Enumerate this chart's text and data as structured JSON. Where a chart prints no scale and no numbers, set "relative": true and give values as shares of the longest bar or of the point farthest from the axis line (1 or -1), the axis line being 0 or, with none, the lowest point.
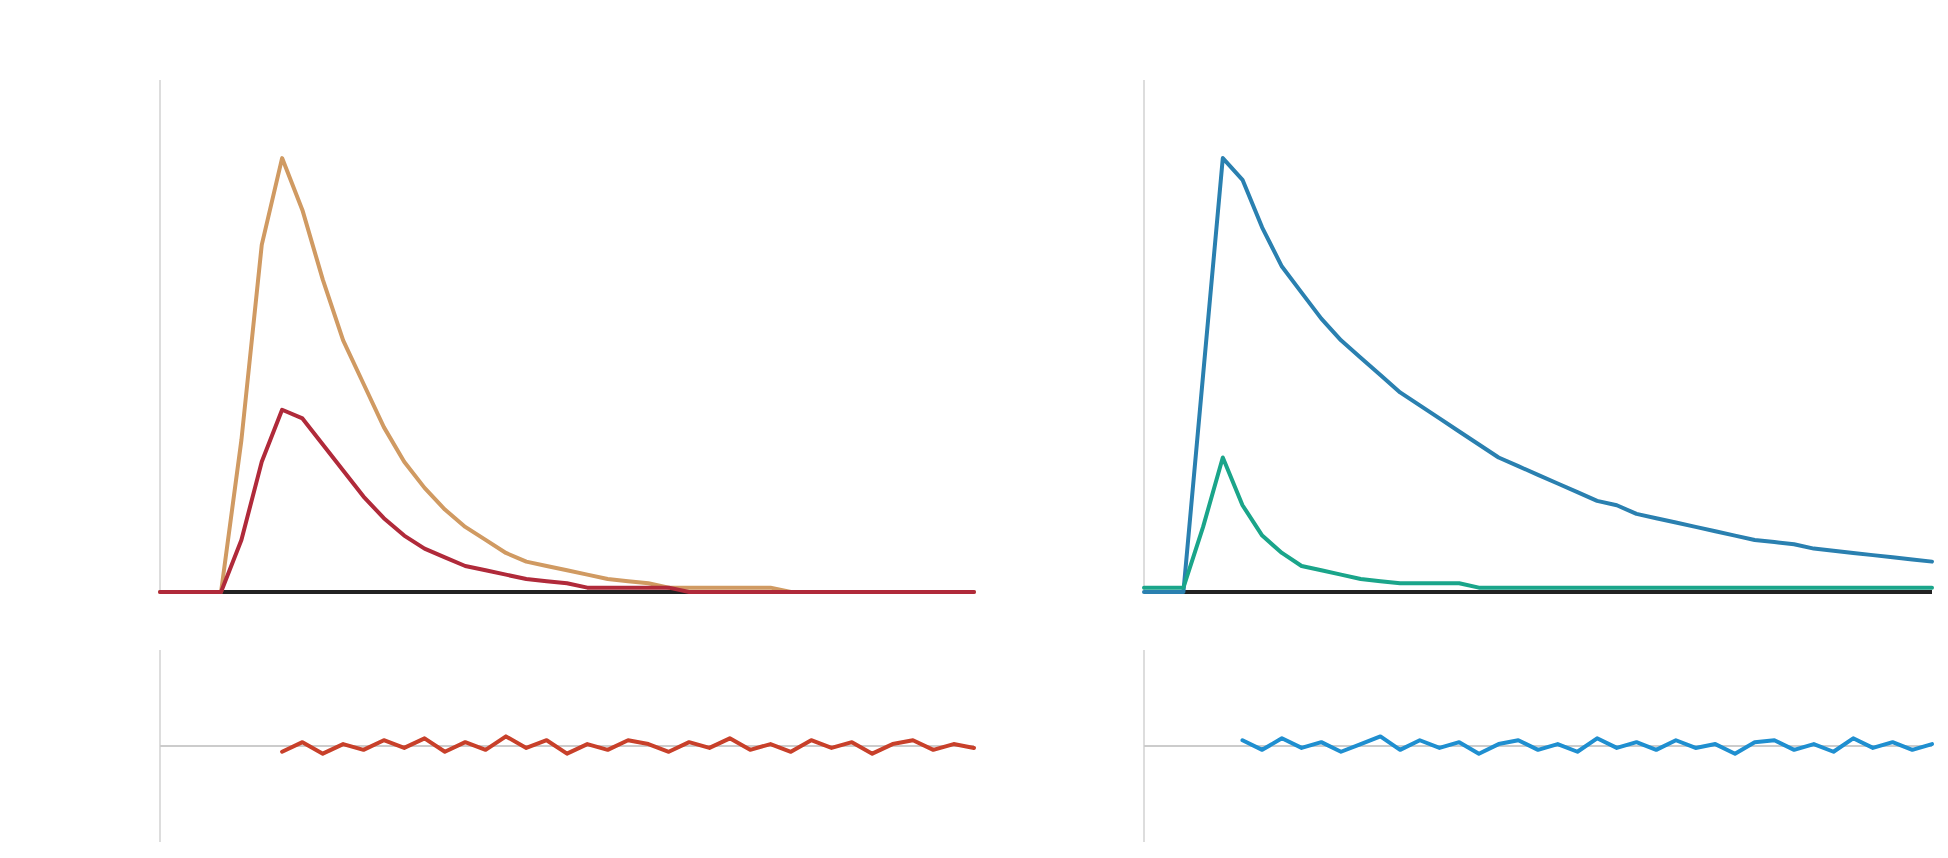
{
  "chart_data": [
    {
      "type": "line",
      "relative": true,
      "categories": [
        null,
        null,
        null,
        null,
        null,
        null,
        null,
        null,
        null,
        null,
        null,
        null,
        null,
        null,
        null,
        null,
        null,
        null,
        null,
        null,
        null,
        null,
        null,
        null,
        null,
        null,
        null,
        null,
        null,
        null,
        null,
        null,
        null,
        null,
        null,
        null,
        null,
        null,
        null,
        null,
        null
      ],
      "series": [
        {
          "color": "#d09a62",
          "values": [
            0,
            0,
            0,
            0,
            0.35,
            0.8,
            1,
            0.88,
            0.72,
            0.58,
            0.48,
            0.38,
            0.3,
            0.24,
            0.19,
            0.15,
            0.12,
            0.09,
            0.07,
            0.06,
            0.05,
            0.04,
            0.03,
            0.025,
            0.02,
            0.01,
            0.01,
            0.01,
            0.01,
            0.01,
            0.01,
            0,
            0,
            0,
            0,
            0,
            0,
            0,
            0,
            0,
            0
          ]
        },
        {
          "color": "#b02a3a",
          "values": [
            0,
            0,
            0,
            0,
            0.12,
            0.3,
            0.42,
            0.4,
            0.34,
            0.28,
            0.22,
            0.17,
            0.13,
            0.1,
            0.08,
            0.06,
            0.05,
            0.04,
            0.03,
            0.025,
            0.02,
            0.01,
            0.01,
            0.01,
            0.01,
            0.01,
            0,
            0,
            0,
            0,
            0,
            0,
            0,
            0,
            0,
            0,
            0,
            0,
            0,
            0,
            0
          ]
        }
      ]
    },
    {
      "type": "line",
      "relative": true,
      "categories": [
        null,
        null,
        null,
        null,
        null,
        null,
        null,
        null,
        null,
        null,
        null,
        null,
        null,
        null,
        null,
        null,
        null,
        null,
        null,
        null,
        null,
        null,
        null,
        null,
        null,
        null,
        null,
        null,
        null,
        null,
        null,
        null,
        null,
        null,
        null,
        null,
        null,
        null,
        null,
        null,
        null
      ],
      "series": [
        {
          "color": "#c8402a",
          "values": [
            null,
            null,
            null,
            null,
            null,
            null,
            -0.6,
            0.4,
            -0.8,
            0.2,
            -0.4,
            0.6,
            -0.2,
            0.8,
            -0.6,
            0.4,
            -0.4,
            1,
            -0.2,
            0.6,
            -0.8,
            0.2,
            -0.4,
            0.6,
            0.2,
            -0.6,
            0.4,
            -0.2,
            0.8,
            -0.4,
            0.2,
            -0.6,
            0.6,
            -0.2,
            0.4,
            -0.8,
            0.2,
            0.6,
            -0.4,
            0.2,
            -0.2
          ]
        }
      ]
    },
    {
      "type": "line",
      "relative": true,
      "categories": [
        null,
        null,
        null,
        null,
        null,
        null,
        null,
        null,
        null,
        null,
        null,
        null,
        null,
        null,
        null,
        null,
        null,
        null,
        null,
        null,
        null,
        null,
        null,
        null,
        null,
        null,
        null,
        null,
        null,
        null,
        null,
        null,
        null,
        null,
        null,
        null,
        null,
        null,
        null,
        null,
        null
      ],
      "series": [
        {
          "color": "#2a80b0",
          "values": [
            0,
            0,
            0,
            0.5,
            1,
            0.95,
            0.84,
            0.75,
            0.69,
            0.63,
            0.58,
            0.54,
            0.5,
            0.46,
            0.43,
            0.4,
            0.37,
            0.34,
            0.31,
            0.29,
            0.27,
            0.25,
            0.23,
            0.21,
            0.2,
            0.18,
            0.17,
            0.16,
            0.15,
            0.14,
            0.13,
            0.12,
            0.115,
            0.11,
            0.1,
            0.095,
            0.09,
            0.085,
            0.08,
            0.075,
            0.07
          ]
        },
        {
          "color": "#1aa58a",
          "values": [
            0.01,
            0.01,
            0.01,
            0.15,
            0.31,
            0.2,
            0.13,
            0.09,
            0.06,
            0.05,
            0.04,
            0.03,
            0.025,
            0.02,
            0.02,
            0.02,
            0.02,
            0.01,
            0.01,
            0.01,
            0.01,
            0.01,
            0.01,
            0.01,
            0.01,
            0.01,
            0.01,
            0.01,
            0.01,
            0.01,
            0.01,
            0.01,
            0.01,
            0.01,
            0.01,
            0.01,
            0.01,
            0.01,
            0.01,
            0.01,
            0.01
          ]
        }
      ]
    },
    {
      "type": "line",
      "relative": true,
      "categories": [
        null,
        null,
        null,
        null,
        null,
        null,
        null,
        null,
        null,
        null,
        null,
        null,
        null,
        null,
        null,
        null,
        null,
        null,
        null,
        null,
        null,
        null,
        null,
        null,
        null,
        null,
        null,
        null,
        null,
        null,
        null,
        null,
        null,
        null,
        null,
        null,
        null,
        null,
        null,
        null,
        null
      ],
      "series": [
        {
          "color": "#1f8fd0",
          "values": [
            null,
            null,
            null,
            null,
            null,
            0.6,
            -0.4,
            0.8,
            -0.2,
            0.4,
            -0.6,
            0.2,
            1,
            -0.4,
            0.6,
            -0.2,
            0.4,
            -0.8,
            0.2,
            0.6,
            -0.4,
            0.2,
            -0.6,
            0.8,
            -0.2,
            0.4,
            -0.4,
            0.6,
            -0.2,
            0.2,
            -0.8,
            0.4,
            0.6,
            -0.4,
            0.2,
            -0.6,
            0.8,
            -0.2,
            0.4,
            -0.4,
            0.2
          ]
        }
      ]
    }
  ]
}
